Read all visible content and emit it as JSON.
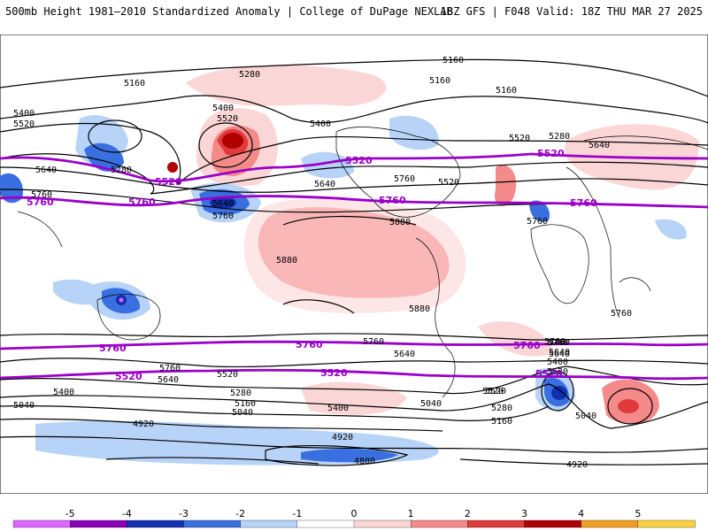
{
  "header": {
    "title": "500mb Height 1981–2010 Standardized Anomaly | College of DuPage NEXLAB",
    "run_info": "18Z GFS | F048 Valid: 18Z THU MAR 27 2025"
  },
  "map": {
    "highlighted_contours": [
      "5520",
      "5760"
    ],
    "contour_labels": [
      "5160",
      "5280",
      "5160",
      "5160",
      "5160",
      "5400",
      "5520",
      "5520",
      "5400",
      "5400",
      "5280",
      "5640",
      "5640",
      "5280",
      "5520",
      "5640",
      "5520",
      "5760",
      "5760",
      "5640",
      "5760",
      "5760",
      "5880",
      "5880",
      "5760",
      "5520",
      "5760",
      "5880",
      "5760",
      "5640",
      "5760",
      "5640",
      "5760",
      "5640",
      "5400",
      "5520",
      "5520",
      "5760",
      "5640",
      "5520",
      "5400",
      "5280",
      "5160",
      "5040",
      "5400",
      "5040",
      "5040",
      "5160",
      "5280",
      "5040",
      "4920",
      "4920",
      "4800",
      "4920"
    ],
    "purple_labels": [
      "5520",
      "5760",
      "5760",
      "5520",
      "5760",
      "5520",
      "5760",
      "5520",
      "5760",
      "5760",
      "5520",
      "5520",
      "5760"
    ]
  },
  "colorbar": {
    "ticks": [
      "-5",
      "-4",
      "-3",
      "-2",
      "-1",
      "0",
      "1",
      "2",
      "3",
      "4",
      "5"
    ],
    "colors": [
      "#e066ff",
      "#8a00b8",
      "#1230b0",
      "#3a6fe0",
      "#b8d3f8",
      "#ffffff",
      "#fbd6d6",
      "#f58a8a",
      "#e03a3a",
      "#b00000",
      "#f0a020",
      "#ffd040"
    ]
  }
}
